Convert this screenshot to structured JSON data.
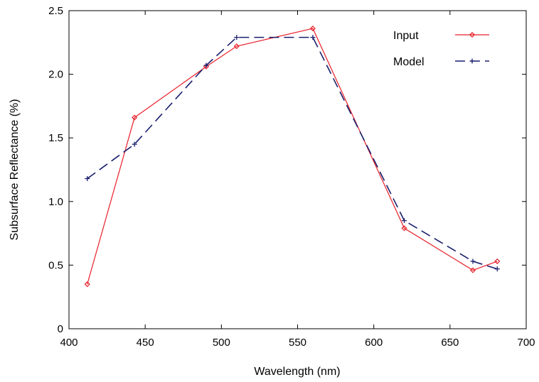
{
  "chart_data": {
    "type": "line",
    "title": "",
    "xlabel": "Wavelength (nm)",
    "ylabel": "Subsurface Reflectance (%)",
    "xlim": [
      400,
      700
    ],
    "ylim": [
      0,
      2.5
    ],
    "xticks": [
      400,
      450,
      500,
      550,
      600,
      650,
      700
    ],
    "yticks": [
      0,
      0.5,
      1.0,
      1.5,
      2.0,
      2.5
    ],
    "x_tick_labels": [
      "400",
      "450",
      "500",
      "550",
      "600",
      "650",
      "700"
    ],
    "y_tick_labels": [
      "0",
      "0.5",
      "1.0",
      "1.5",
      "2.0",
      "2.5"
    ],
    "grid": false,
    "legend_position": "top-right",
    "series": [
      {
        "name": "Input",
        "color": "#e8202a",
        "line_style": "solid",
        "marker": "diamond",
        "x": [
          412,
          443,
          490,
          510,
          560,
          620,
          665,
          681
        ],
        "y": [
          0.35,
          1.66,
          2.06,
          2.22,
          2.36,
          0.79,
          0.46,
          0.53
        ]
      },
      {
        "name": "Model",
        "color": "#1a1f6e",
        "line_style": "dashed",
        "marker": "plus",
        "x": [
          412,
          443,
          490,
          510,
          560,
          620,
          665,
          681
        ],
        "y": [
          1.18,
          1.45,
          2.07,
          2.29,
          2.29,
          0.85,
          0.53,
          0.47
        ]
      }
    ]
  }
}
